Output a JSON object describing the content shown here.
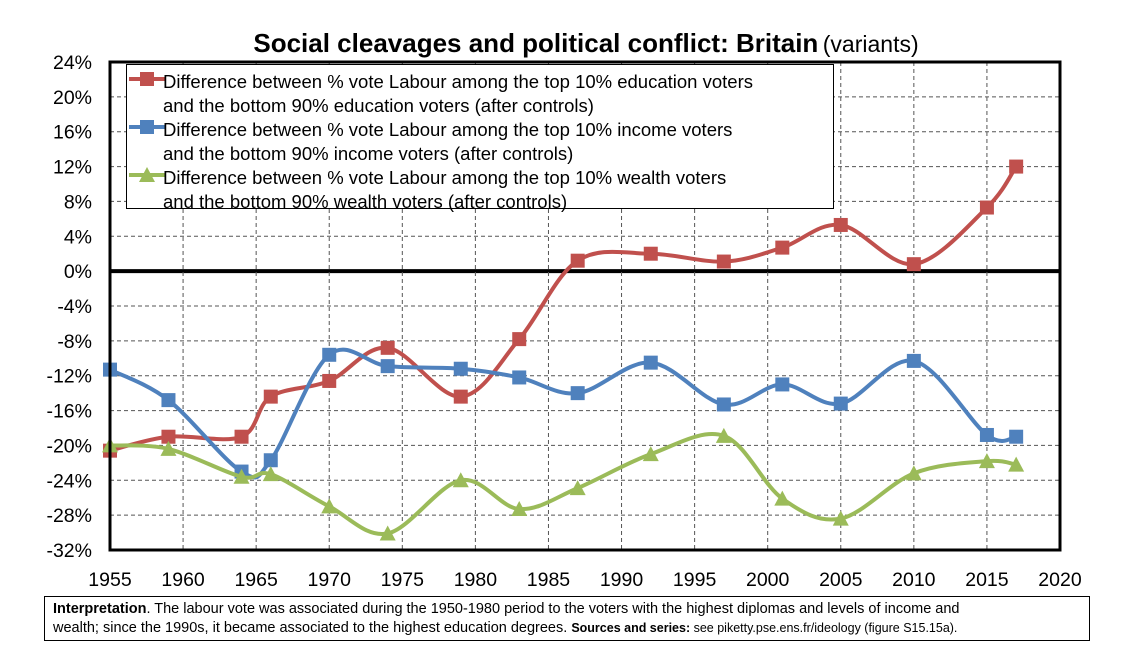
{
  "title": {
    "main": "Social cleavages and political conflict: Britain",
    "sub": "(variants)"
  },
  "legend": [
    {
      "line1": "Difference between % vote Labour among the top 10% education voters",
      "line2": "and the bottom 90% education voters (after controls)"
    },
    {
      "line1": "Difference between % vote Labour among the top 10% income voters",
      "line2": "and the bottom 90% income voters (after controls)"
    },
    {
      "line1": "Difference between % vote Labour among the top 10% wealth voters",
      "line2": "and the bottom 90% wealth voters (after controls)"
    }
  ],
  "note": {
    "label": "Interpretation",
    "text1": ". The labour vote was associated during the 1950-1980 period to the voters with the highest diplomas and levels of income and",
    "text2": "wealth; since the 1990s, it became associated to the highest education degrees.",
    "sources_label": "Sources and series:",
    "sources_text": " see piketty.pse.ens.fr/ideology (figure S15.15a)."
  },
  "chart_data": {
    "type": "line",
    "title": "Social cleavages and political conflict: Britain (variants)",
    "xlim": [
      1955,
      2020
    ],
    "ylim": [
      -32,
      24
    ],
    "x_ticks": [
      1955,
      1960,
      1965,
      1970,
      1975,
      1980,
      1985,
      1990,
      1995,
      2000,
      2005,
      2010,
      2015,
      2020
    ],
    "y_ticks": [
      24,
      20,
      16,
      12,
      8,
      4,
      0,
      -4,
      -8,
      -12,
      -16,
      -20,
      -24,
      -28,
      -32
    ],
    "y_tick_labels": [
      "24%",
      "20%",
      "16%",
      "12%",
      "8%",
      "4%",
      "0%",
      "-4%",
      "-8%",
      "-12%",
      "-16%",
      "-20%",
      "-24%",
      "-28%",
      "-32%"
    ],
    "grid": true,
    "legend_position": "top",
    "series": [
      {
        "name": "Difference between % vote Labour among the top 10% education voters and the bottom 90% education voters (after controls)",
        "color": "#c0504d",
        "marker": "square",
        "x": [
          1955,
          1959,
          1964,
          1966,
          1970,
          1974,
          1979,
          1983,
          1987,
          1992,
          1997,
          2001,
          2005,
          2010,
          2015,
          2017
        ],
        "values": [
          -20.6,
          -19.0,
          -19.0,
          -14.4,
          -12.6,
          -8.8,
          -14.4,
          -7.8,
          1.2,
          2.0,
          1.1,
          2.7,
          5.3,
          0.8,
          7.3,
          12.0
        ]
      },
      {
        "name": "Difference between % vote Labour among the top 10% income voters and the bottom 90% income voters (after controls)",
        "color": "#4f81bd",
        "marker": "square",
        "x": [
          1955,
          1959,
          1964,
          1966,
          1970,
          1974,
          1979,
          1983,
          1987,
          1992,
          1997,
          2001,
          2005,
          2010,
          2015,
          2017
        ],
        "values": [
          -11.3,
          -14.8,
          -23.0,
          -21.7,
          -9.6,
          -10.9,
          -11.2,
          -12.2,
          -14.0,
          -10.5,
          -15.3,
          -13.0,
          -15.2,
          -10.3,
          -18.8,
          -19.0
        ]
      },
      {
        "name": "Difference between % vote Labour among the top 10% wealth voters and the bottom 90% wealth voters (after controls)",
        "color": "#9bbb59",
        "marker": "triangle",
        "x": [
          1955,
          1959,
          1964,
          1966,
          1970,
          1974,
          1979,
          1983,
          1987,
          1992,
          1997,
          2001,
          2005,
          2010,
          2015,
          2017
        ],
        "values": [
          -20.0,
          -20.4,
          -23.6,
          -23.3,
          -27.0,
          -30.1,
          -24.0,
          -27.3,
          -24.9,
          -21.0,
          -18.9,
          -26.1,
          -28.4,
          -23.2,
          -21.8,
          -22.2
        ]
      }
    ]
  }
}
